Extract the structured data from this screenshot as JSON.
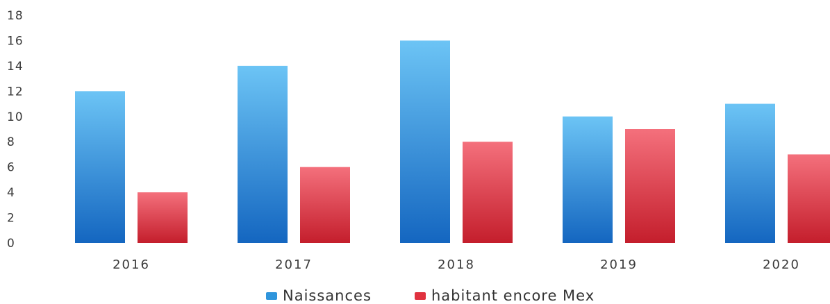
{
  "chart_data": {
    "type": "bar",
    "categories": [
      "2016",
      "2017",
      "2018",
      "2019",
      "2020"
    ],
    "series": [
      {
        "name": "Naissances",
        "values": [
          12,
          14,
          16,
          10,
          11
        ],
        "color": "#2f95dc"
      },
      {
        "name": "habitant encore Mex",
        "values": [
          4,
          6,
          8,
          9,
          7
        ],
        "color": "#e0323f"
      }
    ],
    "ylim": [
      0,
      18
    ],
    "yticks": [
      0,
      2,
      4,
      6,
      8,
      10,
      12,
      14,
      16,
      18
    ],
    "grid": false,
    "legend": "bottom"
  }
}
